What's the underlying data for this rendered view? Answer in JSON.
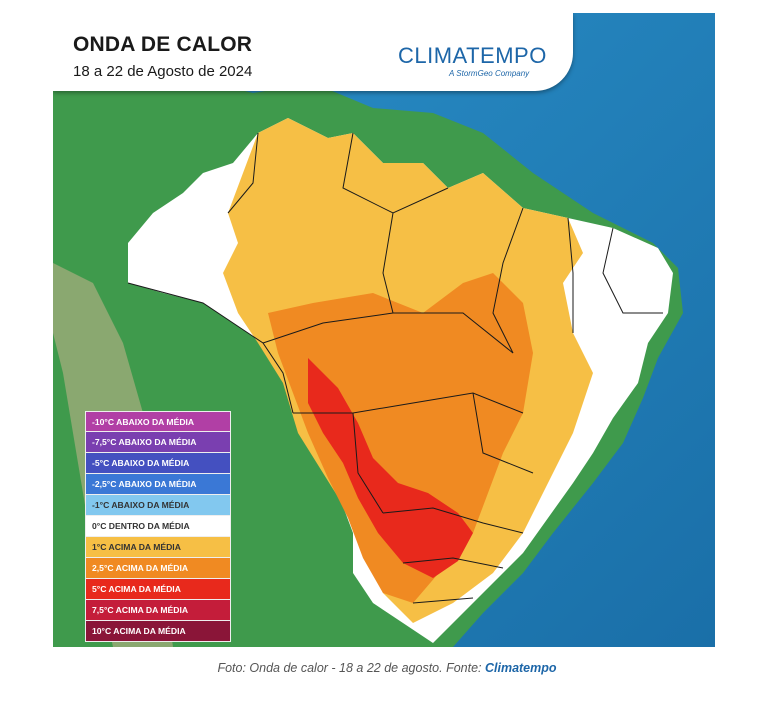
{
  "header": {
    "title": "ONDA DE CALOR",
    "subtitle": "18 a 22 de Agosto de 2024",
    "brand_name": "CLIMATEMPO",
    "brand_tagline": "A StormGeo Company"
  },
  "legend": {
    "items": [
      {
        "label": "-10°C ABAIXO DA MÉDIA",
        "color": "#b13fa5"
      },
      {
        "label": "-7,5°C ABAIXO DA MÉDIA",
        "color": "#7a3fb0"
      },
      {
        "label": "-5°C ABAIXO DA MÉDIA",
        "color": "#4450c0"
      },
      {
        "label": "-2,5°C ABAIXO DA MÉDIA",
        "color": "#3a78d6"
      },
      {
        "label": "-1°C ABAIXO DA MÉDIA",
        "color": "#82c8ef"
      },
      {
        "label": "0°C DENTRO DA MÉDIA",
        "color": "#ffffff"
      },
      {
        "label": "1°C ACIMA DA MÉDIA",
        "color": "#f6bf45"
      },
      {
        "label": "2,5°C ACIMA DA MÉDIA",
        "color": "#f08a22"
      },
      {
        "label": "5°C ACIMA DA MÉDIA",
        "color": "#e8291c"
      },
      {
        "label": "7,5°C ACIMA DA MÉDIA",
        "color": "#c41d3a"
      },
      {
        "label": "10°C ACIMA DA MÉDIA",
        "color": "#8a1538"
      }
    ]
  },
  "caption": {
    "text": "Foto: Onda de calor - 18 a 22 de agosto. Fonte: ",
    "source": "Climatempo"
  },
  "colors": {
    "ocean": "#1c7fb8",
    "land": "#3f9a4c",
    "andes": "#8aa870",
    "border": "#1a1a1a"
  }
}
